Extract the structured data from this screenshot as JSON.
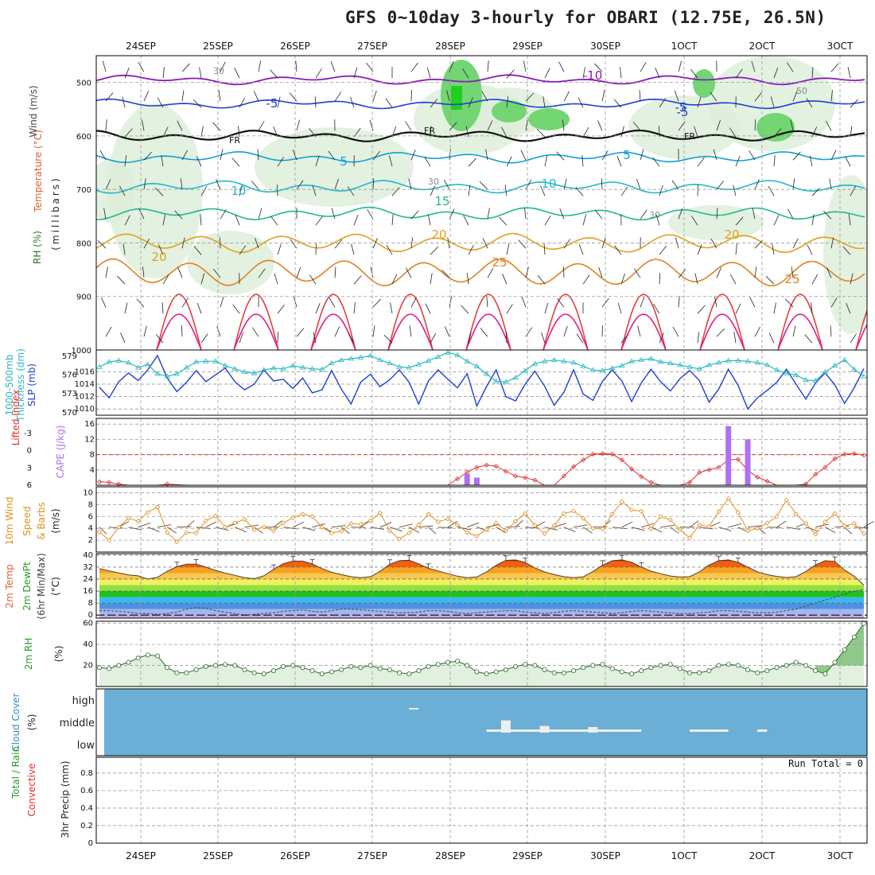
{
  "colors": {
    "temp_warm": "#e08a10",
    "temp_cool": "#10a0d8",
    "slp": "#1f3fd0",
    "thickness": "#2ab8c0",
    "cape": "#b070f0",
    "li": "#e03030",
    "wind": "#e09020",
    "rh": "#2a9a2a",
    "cloud_bg": "#6baed6",
    "grid": "#9a9a9a"
  },
  "chart_data": {
    "title": "GFS 0~10day 3-hourly for OBARI (12.75E, 26.5N)",
    "dates": [
      "24SEP",
      "25SEP",
      "26SEP",
      "27SEP",
      "28SEP",
      "29SEP",
      "30SEP",
      "1OCT",
      "2OCT",
      "3OCT"
    ],
    "date_labels": [
      "24SEP",
      "25SEP",
      "26SEP",
      "27SEP",
      "28SEP",
      "29SEP",
      "30SEP",
      "1OCT",
      "2OCT",
      "3OCT"
    ],
    "panels": [
      {
        "id": "upper-air",
        "type": "contour",
        "ylabel": [
          "Wind (m/s)",
          "Temperature (°C)",
          "RH (%)",
          "(millibars)"
        ],
        "ylim": [
          1000,
          450
        ],
        "yticks": [
          500,
          600,
          700,
          800,
          900,
          1000
        ],
        "contour_labels": [
          "-10",
          "-5",
          "-5",
          "-5",
          "FR",
          "FR",
          "FR",
          "5",
          "5",
          "10",
          "10",
          "15",
          "20",
          "20",
          "20",
          "25",
          "25",
          "30",
          "30",
          "30",
          "50"
        ]
      },
      {
        "id": "thickness-slp",
        "type": "line",
        "ylabel_left": [
          "1000-500mb",
          "Thickness (dm)"
        ],
        "ylabel_right": "SLP (mb)",
        "yticks_left": [
          570,
          573,
          576,
          579
        ],
        "yticks_right": [
          1010,
          1012,
          1014,
          1016
        ],
        "series": [
          {
            "name": "SLP (mb)",
            "values": [
              1013.5,
              1011.8,
              1014.4,
              1015.8,
              1014.6,
              1016.3,
              1018.6,
              1015.0,
              1012.8,
              1014.3,
              1016.2,
              1014.4,
              1015.5,
              1016.6,
              1014.4,
              1013.1,
              1014.0,
              1016.3,
              1014.5,
              1014.8,
              1013.3,
              1015.0,
              1012.6,
              1013.1,
              1016.2,
              1013.2,
              1010.8,
              1014.3,
              1015.6,
              1013.6,
              1014.7,
              1016.3,
              1014.3,
              1010.8,
              1014.5,
              1016.3,
              1014.8,
              1013.4,
              1015.7,
              1010.5,
              1013.6,
              1016.3,
              1012.0,
              1011.3,
              1014.0,
              1016.1,
              1013.7,
              1010.6,
              1012.7,
              1016.3,
              1012.4,
              1011.4,
              1014.5,
              1016.3,
              1014.5,
              1011.2,
              1014.2,
              1016.4,
              1014.4,
              1012.9,
              1014.9,
              1016.2,
              1014.6,
              1011.1,
              1013.2,
              1016.4,
              1013.8,
              1010.0,
              1011.8,
              1013.0,
              1014.3,
              1016.4,
              1014.0,
              1011.6,
              1014.2,
              1015.8,
              1013.9,
              1010.9,
              1013.4,
              1016.5
            ]
          },
          {
            "name": "Thickness (dm)",
            "values": [
              577.3,
              578.1,
              578.3,
              578.0,
              577.2,
              577.7,
              576.2,
              575.8,
              576.2,
              577.2,
              578.1,
              578.2,
              578.2,
              577.5,
              577.0,
              576.5,
              576.3,
              576.8,
              577.1,
              577.0,
              577.5,
              577.2,
              577.0,
              576.9,
              577.9,
              578.4,
              578.6,
              578.8,
              579.1,
              578.4,
              577.9,
              577.3,
              577.2,
              577.7,
              578.3,
              578.9,
              579.6,
              579.2,
              578.2,
              577.4,
              576.2,
              575.0,
              574.9,
              575.6,
              576.7,
              577.8,
              578.2,
              578.4,
              578.2,
              578.0,
              577.4,
              576.8,
              576.7,
              577.1,
              577.5,
              578.2,
              578.4,
              578.6,
              578.1,
              577.9,
              577.6,
              577.3,
              577.0,
              577.6,
              578.0,
              578.3,
              578.3,
              578.2,
              578.0,
              577.6,
              576.8,
              576.3,
              576.0,
              575.2,
              575.1,
              576.5,
              577.5,
              578.4,
              576.9,
              575.8
            ]
          }
        ]
      },
      {
        "id": "instability",
        "type": "line-bar",
        "ylabel": [
          "Lifted Index",
          "CAPE (J/kg)"
        ],
        "yticks_left": [
          "-3",
          "0",
          "3",
          "6"
        ],
        "yticks_right": [
          4,
          8,
          12,
          16
        ],
        "series": [
          {
            "name": "Lifted Index",
            "values": [
              5.4,
              5.5,
              5.8,
              6.0,
              6.0,
              6.0,
              6.0,
              5.8,
              5.9,
              6.0,
              6.0,
              6.0,
              6.0,
              6.0,
              6.0,
              6.0,
              6.0,
              6.0,
              6.0,
              6.0,
              6.0,
              6.0,
              6.0,
              6.0,
              6.0,
              6.0,
              6.0,
              6.0,
              6.0,
              6.0,
              6.0,
              6.0,
              6.0,
              6.0,
              6.0,
              6.0,
              6.0,
              4.9,
              3.7,
              2.9,
              2.5,
              2.7,
              3.6,
              4.4,
              4.7,
              5.1,
              6.0,
              6.0,
              4.4,
              2.8,
              1.6,
              0.6,
              0.5,
              0.6,
              1.6,
              3.2,
              4.5,
              5.5,
              6.0,
              6.0,
              6.0,
              5.5,
              3.8,
              3.3,
              2.9,
              1.6,
              1.5,
              3.4,
              4.6,
              5.3,
              6.0,
              6.0,
              6.0,
              5.8,
              4.1,
              2.9,
              1.4,
              0.6,
              0.5,
              0.8
            ]
          },
          {
            "name": "CAPE (J/kg)",
            "type": "bar",
            "x_index": [
              38,
              39,
              65,
              67
            ],
            "values": [
              3.0,
              2.0,
              15.5,
              12.0
            ]
          }
        ]
      },
      {
        "id": "wind10m",
        "type": "line",
        "ylabel": [
          "10m Wind",
          "Speed",
          "& Barbs",
          "(m/s)"
        ],
        "yticks": [
          2,
          4,
          6,
          8,
          10
        ],
        "series": [
          {
            "name": "10m Wind Speed",
            "values": [
              3.4,
              2.0,
              4.2,
              5.7,
              5.2,
              6.7,
              7.6,
              3.3,
              1.7,
              3.3,
              3.2,
              5.3,
              6.1,
              4.2,
              4.9,
              5.5,
              3.8,
              4.2,
              3.6,
              4.9,
              5.8,
              6.4,
              6.0,
              4.2,
              3.2,
              3.5,
              4.8,
              4.7,
              5.3,
              6.6,
              3.6,
              2.2,
              3.2,
              4.6,
              6.4,
              5.1,
              5.6,
              4.6,
              3.3,
              2.7,
              3.8,
              4.9,
              3.6,
              5.2,
              6.5,
              4.5,
              3.1,
              4.5,
              6.5,
              6.9,
              5.7,
              4.0,
              3.9,
              6.4,
              8.5,
              7.1,
              6.9,
              3.9,
              6.0,
              5.4,
              3.8,
              2.4,
              4.6,
              4.3,
              6.8,
              9.0,
              6.7,
              3.6,
              4.0,
              4.9,
              6.0,
              8.8,
              6.4,
              4.8,
              3.0,
              5.1,
              6.5,
              4.4,
              4.8,
              3.1
            ]
          }
        ]
      },
      {
        "id": "temp2m",
        "type": "area",
        "ylabel": [
          "2m Temp",
          "2m DewPt",
          "(6hr Min/Max)",
          "(°C)"
        ],
        "yticks": [
          0,
          8,
          16,
          24,
          32,
          40
        ],
        "series": [
          {
            "name": "2m Temp",
            "values": [
              31.0,
              29.5,
              28.1,
              26.8,
              26.2,
              24.0,
              25.2,
              29.2,
              32.3,
              34.0,
              34.0,
              32.0,
              29.8,
              28.0,
              26.5,
              25.0,
              24.2,
              26.2,
              30.5,
              34.3,
              36.0,
              36.0,
              34.1,
              31.0,
              28.6,
              27.0,
              25.6,
              24.9,
              25.6,
              29.2,
              33.9,
              36.3,
              36.6,
              34.2,
              31.2,
              29.5,
              27.6,
              26.0,
              24.9,
              25.4,
              28.8,
              33.2,
              36.5,
              36.8,
              35.1,
              31.5,
              28.8,
              27.0,
              25.6,
              25.0,
              25.5,
              29.0,
              33.3,
              36.3,
              36.8,
              35.2,
              31.9,
              29.3,
              27.6,
              26.1,
              25.4,
              25.6,
              28.8,
              33.4,
              36.3,
              36.8,
              35.2,
              32.0,
              28.8,
              27.0,
              25.8,
              25.1,
              25.6,
              29.1,
              33.4,
              36.3,
              35.8,
              30.0,
              26.0,
              20.0
            ]
          },
          {
            "name": "2m DewPt",
            "values": [
              3.0,
              3.0,
              2.5,
              2.0,
              1.0,
              1.0,
              0.5,
              1.0,
              2.0,
              4.0,
              5.0,
              4.5,
              3.0,
              2.0,
              1.0,
              0.0,
              0.5,
              1.0,
              1.5,
              2.5,
              3.0,
              3.5,
              2.5,
              2.0,
              3.0,
              4.0,
              4.0,
              3.5,
              3.0,
              2.5,
              2.0,
              1.5,
              1.5,
              2.0,
              3.0,
              3.0,
              2.5,
              1.5,
              1.0,
              1.5,
              2.0,
              2.5,
              3.0,
              3.0,
              2.0,
              1.5,
              1.0,
              1.5,
              2.5,
              3.0,
              2.5,
              2.0,
              1.5,
              1.0,
              1.5,
              2.5,
              3.0,
              2.5,
              2.0,
              1.5,
              1.0,
              1.0,
              1.5,
              2.0,
              3.0,
              3.0,
              2.5,
              2.0,
              1.5,
              1.5,
              2.0,
              3.0,
              4.0,
              6.0,
              8.0,
              10.0,
              12.0,
              14.0,
              16.0,
              17.0
            ]
          }
        ]
      },
      {
        "id": "rh2m",
        "type": "area",
        "ylabel": [
          "2m RH",
          "(%)"
        ],
        "yticks": [
          20,
          40,
          60
        ],
        "series": [
          {
            "name": "2m RH",
            "values": [
              18,
              17,
              20,
              23,
              27,
              30,
              29,
              18,
              13,
              13,
              16,
              19,
              20,
              21,
              20,
              16,
              13,
              12,
              15,
              19,
              20,
              18,
              15,
              12,
              14,
              16,
              19,
              18,
              20,
              17,
              16,
              13,
              12,
              15,
              19,
              21,
              23,
              24,
              20,
              14,
              12,
              14,
              16,
              19,
              21,
              20,
              16,
              13,
              13,
              15,
              18,
              20,
              21,
              17,
              14,
              12,
              15,
              18,
              20,
              21,
              17,
              13,
              13,
              15,
              20,
              21,
              20,
              16,
              13,
              15,
              18,
              20,
              23,
              20,
              15,
              12,
              23,
              35,
              47,
              60
            ]
          }
        ]
      },
      {
        "id": "cloud",
        "type": "bar",
        "ylabel": [
          "Cloud Cover",
          "(%)"
        ],
        "yticks": [
          "high",
          "middle",
          "low"
        ],
        "middle_cover": [
          {
            "x_index": 42,
            "value": 0.55
          },
          {
            "x_index": 46,
            "value": 0.3
          },
          {
            "x_index": 51,
            "value": 0.25
          }
        ]
      },
      {
        "id": "precip",
        "type": "bar",
        "ylabel": [
          "Total / Rain",
          "Convective",
          "3hr Precip (mm)"
        ],
        "yticks": [
          0,
          0.2,
          0.4,
          0.6,
          0.8
        ],
        "run_total_text": "Run Total = 0",
        "values": []
      }
    ]
  }
}
